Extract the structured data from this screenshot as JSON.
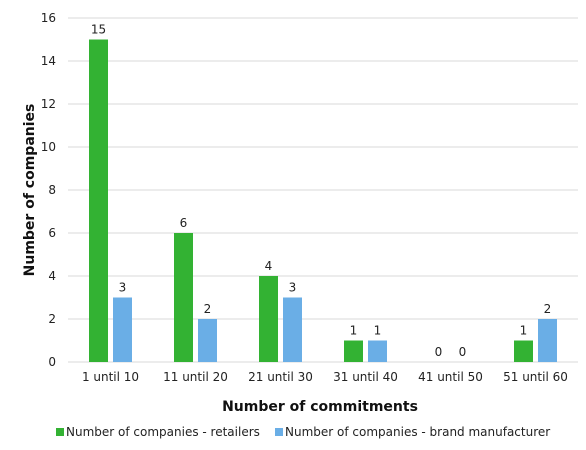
{
  "chart_data": {
    "type": "bar",
    "categories": [
      "1 until 10",
      "11 until 20",
      "21 until 30",
      "31 until 40",
      "41 until 50",
      "51 until 60"
    ],
    "series": [
      {
        "name": "Number of companies - retailers",
        "color": "#33b233",
        "values": [
          15,
          6,
          4,
          1,
          0,
          1
        ]
      },
      {
        "name": "Number of companies - brand manufacturer",
        "color": "#6aaee6",
        "values": [
          3,
          2,
          3,
          1,
          0,
          2
        ]
      }
    ],
    "xlabel": "Number of commitments",
    "ylabel": "Number of companies",
    "ylim": [
      0,
      16
    ],
    "yticks": [
      0,
      2,
      4,
      6,
      8,
      10,
      12,
      14,
      16
    ],
    "grid": true,
    "legend": "bottom"
  }
}
